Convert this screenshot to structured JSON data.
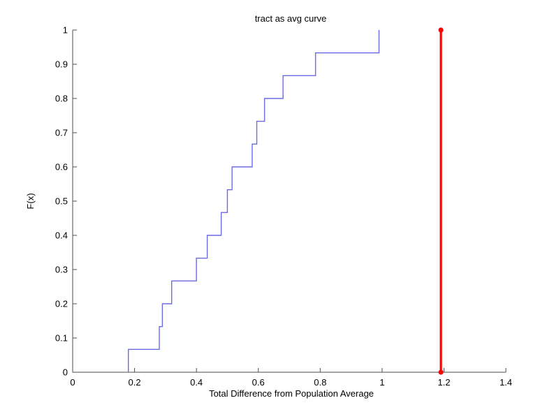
{
  "chart_data": {
    "type": "line",
    "subtype": "ecdf-stairs",
    "title": "tract as avg curve",
    "xlabel": "Total Difference from Population Average",
    "ylabel": "F(x)",
    "xlim": [
      0,
      1.4
    ],
    "ylim": [
      0,
      1
    ],
    "grid": false,
    "box": false,
    "background_color": "#ffffff",
    "axis_color": "#4d4d4d",
    "xticks": [
      0,
      0.2,
      0.4,
      0.6,
      0.8,
      1,
      1.2,
      1.4
    ],
    "xtick_labels": [
      "0",
      "0.2",
      "0.4",
      "0.6",
      "0.8",
      "1",
      "1.2",
      "1.4"
    ],
    "yticks": [
      0,
      0.1,
      0.2,
      0.3,
      0.4,
      0.5,
      0.6,
      0.7,
      0.8,
      0.9,
      1
    ],
    "ytick_labels": [
      "0",
      "0.1",
      "0.2",
      "0.3",
      "0.4",
      "0.5",
      "0.6",
      "0.7",
      "0.8",
      "0.9",
      "1"
    ],
    "series": [
      {
        "name": "empirical-cdf",
        "type": "stairs",
        "color": "#6b6be6",
        "x": [
          0.18,
          0.28,
          0.29,
          0.32,
          0.4,
          0.435,
          0.48,
          0.5,
          0.515,
          0.58,
          0.595,
          0.62,
          0.68,
          0.785,
          0.99
        ],
        "y": [
          0.0667,
          0.1333,
          0.2,
          0.2667,
          0.3333,
          0.4,
          0.4667,
          0.5333,
          0.6,
          0.6667,
          0.7333,
          0.8,
          0.8667,
          0.9333,
          1
        ]
      },
      {
        "name": "observed-statistic",
        "type": "vline-with-markers",
        "color": "#ff0000",
        "x": 1.19,
        "y": [
          0,
          1
        ],
        "marker": "filled-circle",
        "marker_radius": 3.6
      }
    ]
  }
}
